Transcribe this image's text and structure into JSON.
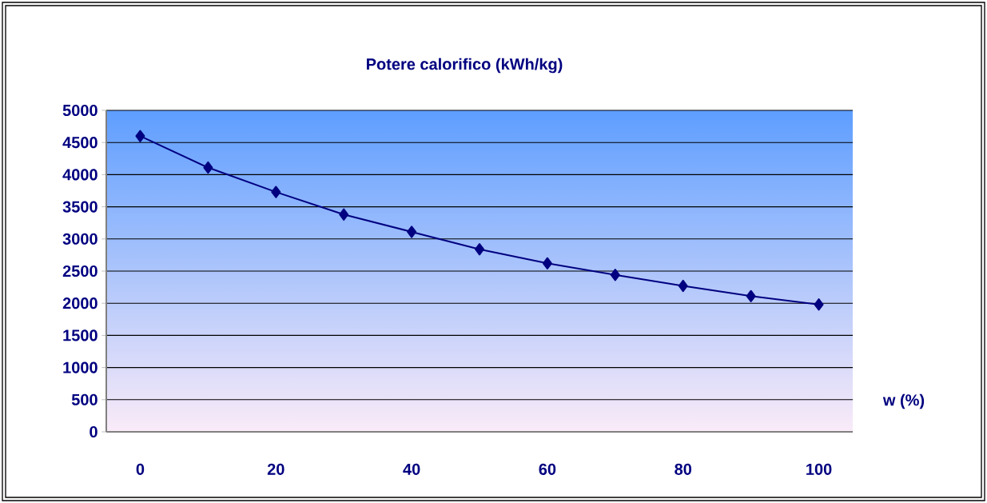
{
  "chart_data": {
    "type": "line",
    "title": "Potere calorifico (kWh/kg)",
    "xlabel": "w (%)",
    "x": [
      0,
      10,
      20,
      30,
      40,
      50,
      60,
      70,
      80,
      90,
      100
    ],
    "series": [
      {
        "color": "#000080",
        "values": [
          4600,
          4110,
          3730,
          3380,
          3110,
          2840,
          2620,
          2440,
          2270,
          2110,
          1980
        ]
      }
    ],
    "xlim": [
      -5,
      105
    ],
    "xticks": [
      0,
      20,
      40,
      60,
      80,
      100
    ],
    "ylim": [
      0,
      5000
    ],
    "yticks": [
      0,
      500,
      1000,
      1500,
      2000,
      2500,
      3000,
      3500,
      4000,
      4500,
      5000
    ],
    "grid": "y",
    "marker": "diamond",
    "line_style": "solid"
  }
}
